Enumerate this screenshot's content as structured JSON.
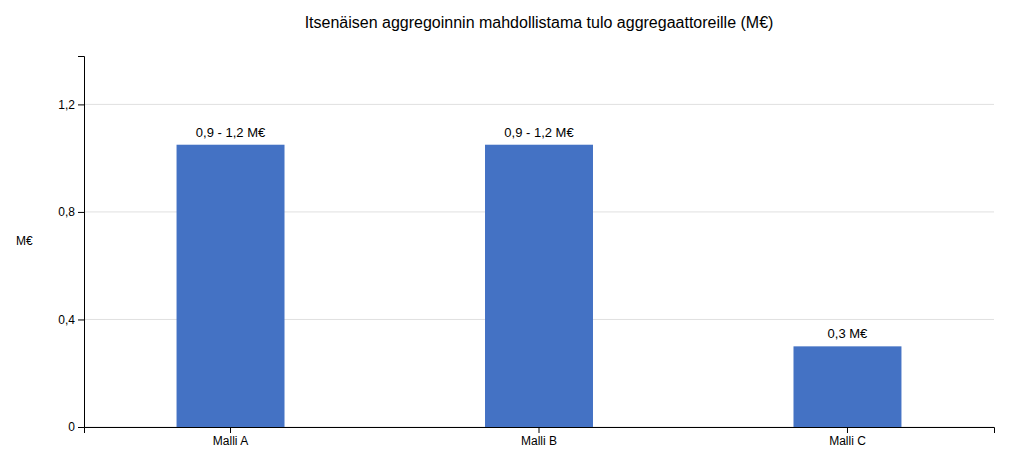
{
  "chart_data": {
    "type": "bar",
    "title": "Itsenäisen aggregoinnin mahdollistama tulo aggregaattoreille (M€)",
    "categories": [
      "Malli A",
      "Malli B",
      "Malli C"
    ],
    "values": [
      1.05,
      1.05,
      0.3
    ],
    "value_labels": [
      "0,9 - 1,2 M€",
      "0,9 - 1,2 M€",
      "0,3 M€"
    ],
    "data_labels": true,
    "color": "#4472C4",
    "ylabel": "M€",
    "ylim": [
      0,
      1.38
    ],
    "yticks": [
      0,
      {
        "value": 0.4,
        "label": "0,4"
      },
      {
        "value": 0.8,
        "label": "0,8"
      },
      {
        "value": 1.2,
        "label": "1,2"
      }
    ],
    "grid": true
  }
}
